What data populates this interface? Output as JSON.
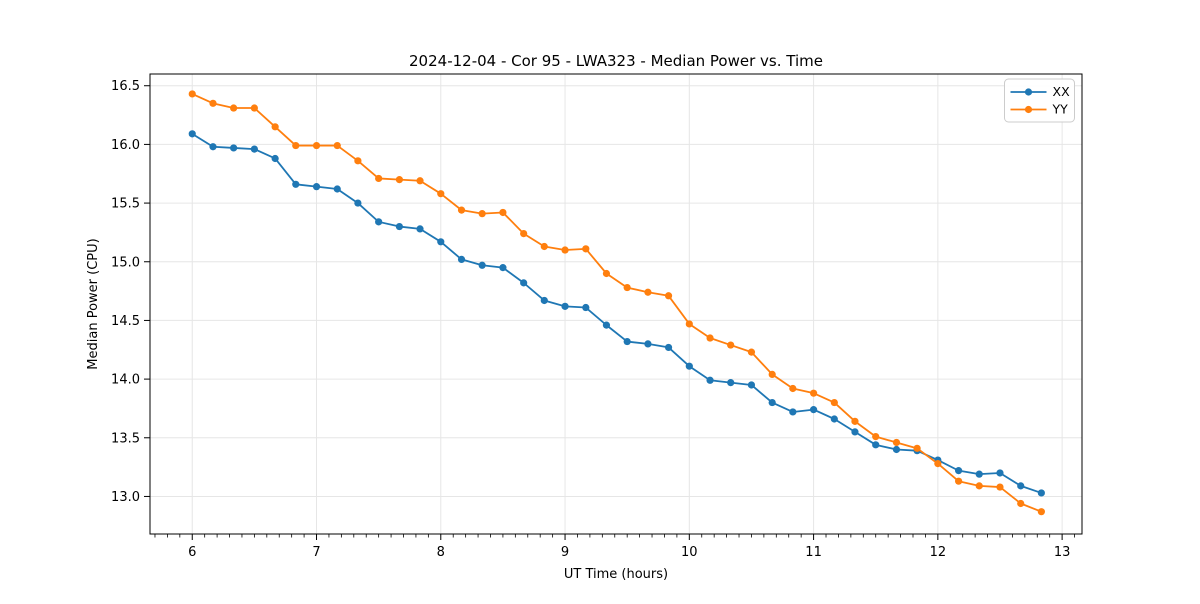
{
  "chart_data": {
    "type": "line",
    "title": "2024-12-04 - Cor 95 - LWA323 - Median Power vs. Time",
    "xlabel": "UT Time (hours)",
    "ylabel": "Median Power (CPU)",
    "xlim": [
      5.66,
      13.16
    ],
    "ylim": [
      12.68,
      16.6
    ],
    "grid": true,
    "legend_position": "upper right",
    "xticks": [
      6,
      7,
      8,
      9,
      10,
      11,
      12,
      13
    ],
    "xtick_labels": [
      "6",
      "7",
      "8",
      "9",
      "10",
      "11",
      "12",
      "13"
    ],
    "x_minor_step": 0.1,
    "yticks": [
      13.0,
      13.5,
      14.0,
      14.5,
      15.0,
      15.5,
      16.0,
      16.5
    ],
    "ytick_labels": [
      "13.0",
      "13.5",
      "14.0",
      "14.5",
      "15.0",
      "15.5",
      "16.0",
      "16.5"
    ],
    "x": [
      6.0,
      6.167,
      6.333,
      6.5,
      6.667,
      6.833,
      7.0,
      7.167,
      7.333,
      7.5,
      7.667,
      7.833,
      8.0,
      8.167,
      8.333,
      8.5,
      8.667,
      8.833,
      9.0,
      9.167,
      9.333,
      9.5,
      9.667,
      9.833,
      10.0,
      10.167,
      10.333,
      10.5,
      10.667,
      10.833,
      11.0,
      11.167,
      11.333,
      11.5,
      11.667,
      11.833,
      12.0,
      12.167,
      12.333,
      12.5,
      12.667,
      12.833
    ],
    "series": [
      {
        "name": "XX",
        "color": "#1f77b4",
        "values": [
          16.09,
          15.98,
          15.97,
          15.96,
          15.88,
          15.66,
          15.64,
          15.62,
          15.5,
          15.34,
          15.3,
          15.28,
          15.17,
          15.02,
          14.97,
          14.95,
          14.82,
          14.67,
          14.62,
          14.61,
          14.46,
          14.32,
          14.3,
          14.27,
          14.11,
          13.99,
          13.97,
          13.95,
          13.8,
          13.72,
          13.74,
          13.66,
          13.55,
          13.44,
          13.4,
          13.39,
          13.31,
          13.22,
          13.19,
          13.2,
          13.09,
          13.03
        ]
      },
      {
        "name": "YY",
        "color": "#ff7f0e",
        "values": [
          16.43,
          16.35,
          16.31,
          16.31,
          16.15,
          15.99,
          15.99,
          15.99,
          15.86,
          15.71,
          15.7,
          15.69,
          15.58,
          15.44,
          15.41,
          15.42,
          15.24,
          15.13,
          15.1,
          15.11,
          14.9,
          14.78,
          14.74,
          14.71,
          14.47,
          14.35,
          14.29,
          14.23,
          14.04,
          13.92,
          13.88,
          13.8,
          13.64,
          13.51,
          13.46,
          13.41,
          13.28,
          13.13,
          13.09,
          13.08,
          12.94,
          12.87
        ]
      }
    ]
  },
  "style": {
    "grid_color": "#e6e6e6",
    "spine_color": "#000000",
    "background": "#ffffff",
    "legend_border": "#cccccc"
  }
}
